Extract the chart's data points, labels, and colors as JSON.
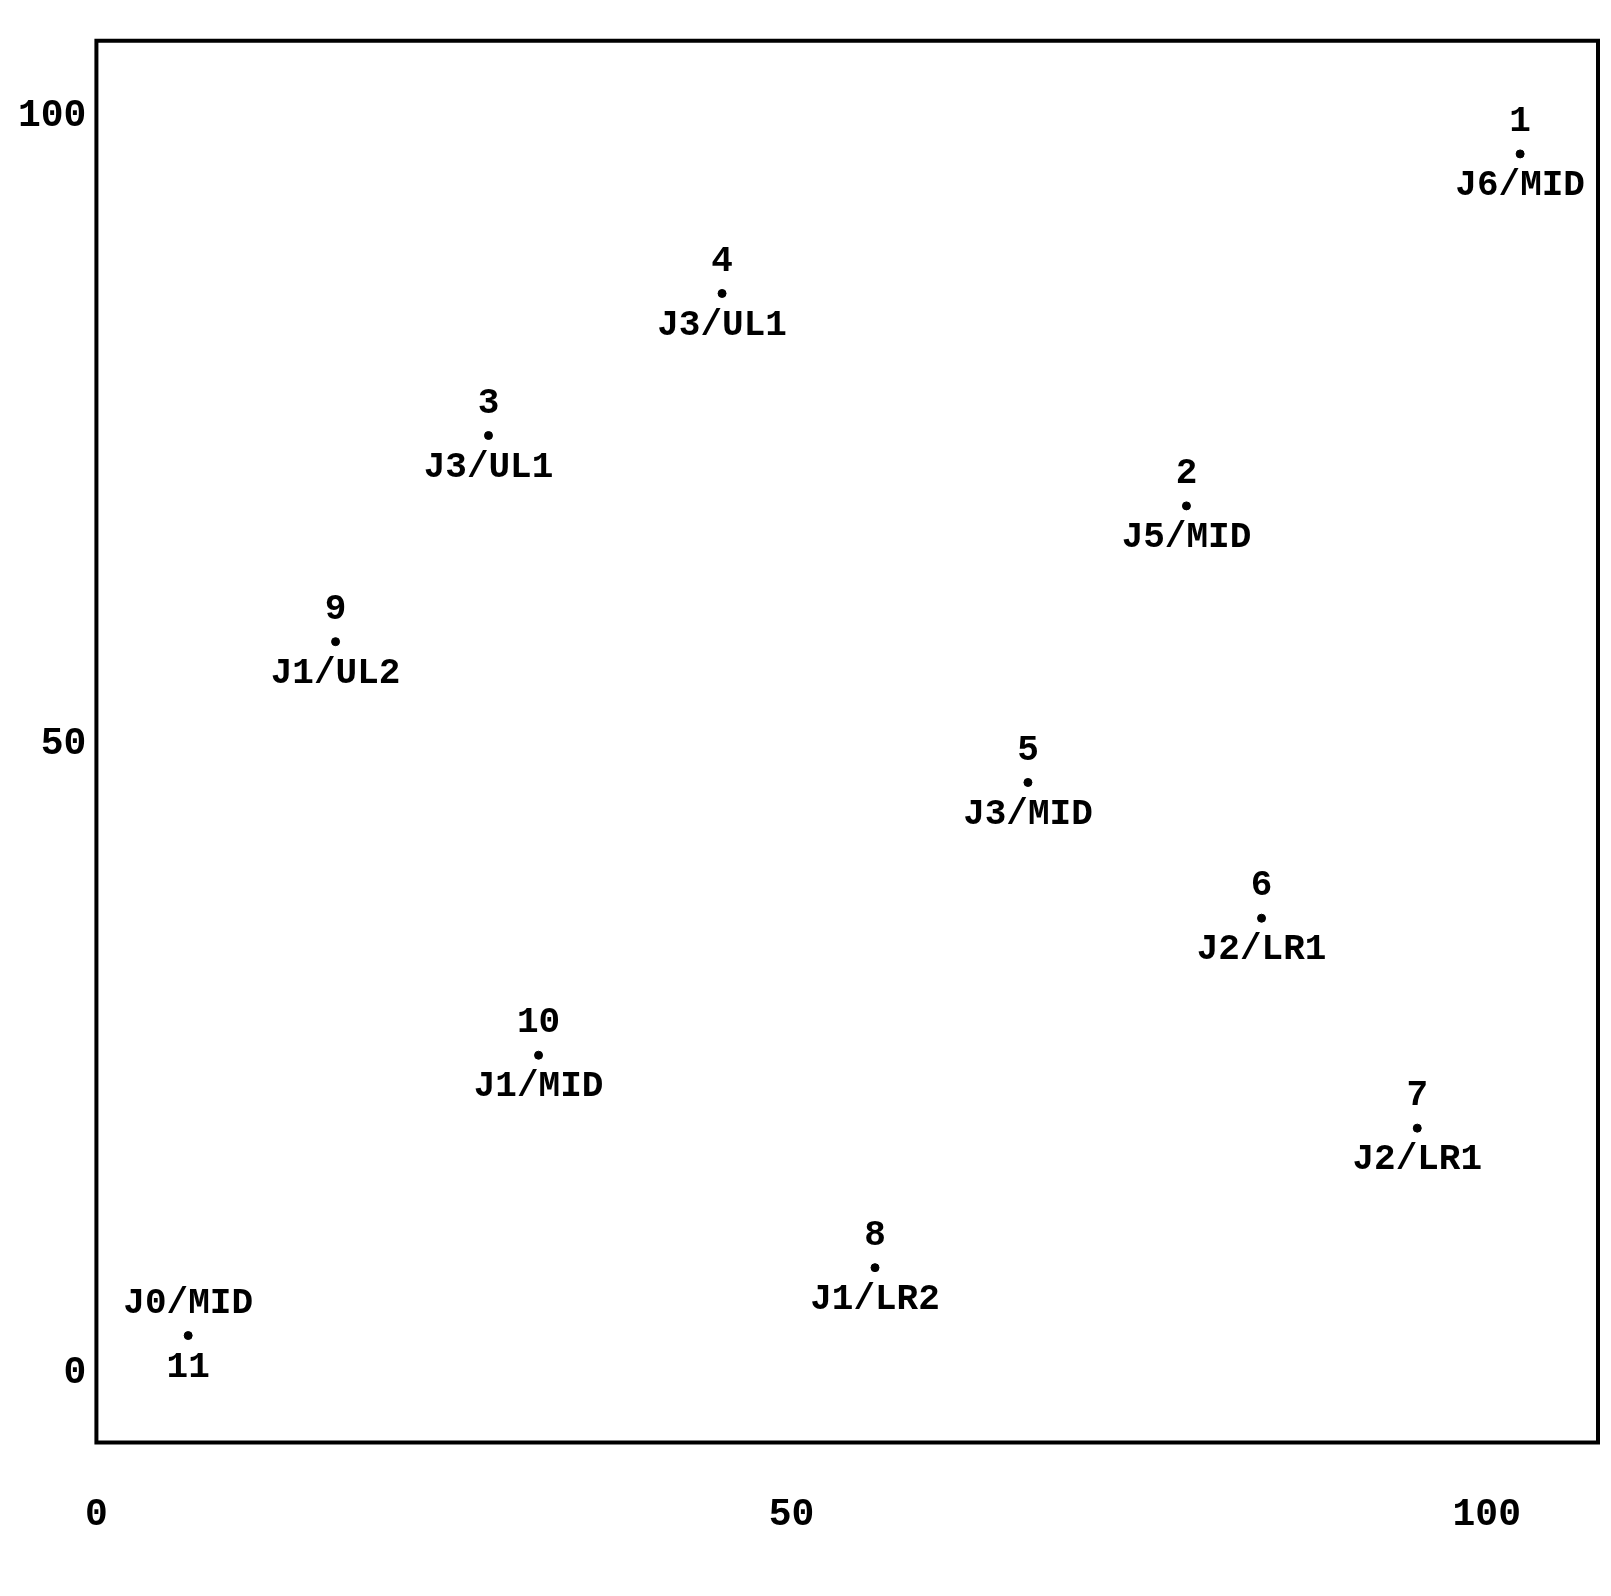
{
  "chart_data": {
    "type": "scatter",
    "marker": "circle",
    "color": "#000000",
    "x": [
      102.4,
      78.4,
      28.2,
      45,
      67,
      83.8,
      95,
      56,
      17.2,
      31.8,
      6.6
    ],
    "values": [
      97,
      69,
      74.6,
      85.9,
      47,
      36.2,
      19.5,
      8.4,
      58.2,
      25.3,
      3
    ],
    "xlim": [
      0,
      108
    ],
    "ylim": [
      -5.5,
      106
    ],
    "xticks": [
      0,
      50,
      100
    ],
    "yticks": [
      0,
      50,
      100
    ],
    "annotations": [
      {
        "text": "1",
        "x": 102.4,
        "y": 97
      },
      {
        "text": "J6/MID",
        "x": 102.4,
        "y": 97
      },
      {
        "text": "2",
        "x": 78.4,
        "y": 69
      },
      {
        "text": "J5/MID",
        "x": 78.4,
        "y": 69
      },
      {
        "text": "3",
        "x": 28.2,
        "y": 74.6
      },
      {
        "text": "J3/UL1",
        "x": 28.2,
        "y": 74.6
      },
      {
        "text": "4",
        "x": 45,
        "y": 85.9
      },
      {
        "text": "J3/UL1",
        "x": 45,
        "y": 85.9
      },
      {
        "text": "5",
        "x": 67,
        "y": 47
      },
      {
        "text": "J3/MID",
        "x": 67,
        "y": 47
      },
      {
        "text": "6",
        "x": 83.8,
        "y": 36.2
      },
      {
        "text": "J2/LR1",
        "x": 83.8,
        "y": 36.2
      },
      {
        "text": "7",
        "x": 95,
        "y": 19.5
      },
      {
        "text": "J2/LR1",
        "x": 95,
        "y": 19.5
      },
      {
        "text": "8",
        "x": 56,
        "y": 8.4
      },
      {
        "text": "J1/LR2",
        "x": 56,
        "y": 8.4
      },
      {
        "text": "9",
        "x": 17.2,
        "y": 58.2
      },
      {
        "text": "J1/UL2",
        "x": 17.2,
        "y": 58.2
      },
      {
        "text": "10",
        "x": 31.8,
        "y": 25.3
      },
      {
        "text": "J1/MID",
        "x": 31.8,
        "y": 25.3
      },
      {
        "text": "J0/MID",
        "x": 6.6,
        "y": 3
      },
      {
        "text": "11",
        "x": 6.6,
        "y": 3
      }
    ]
  }
}
